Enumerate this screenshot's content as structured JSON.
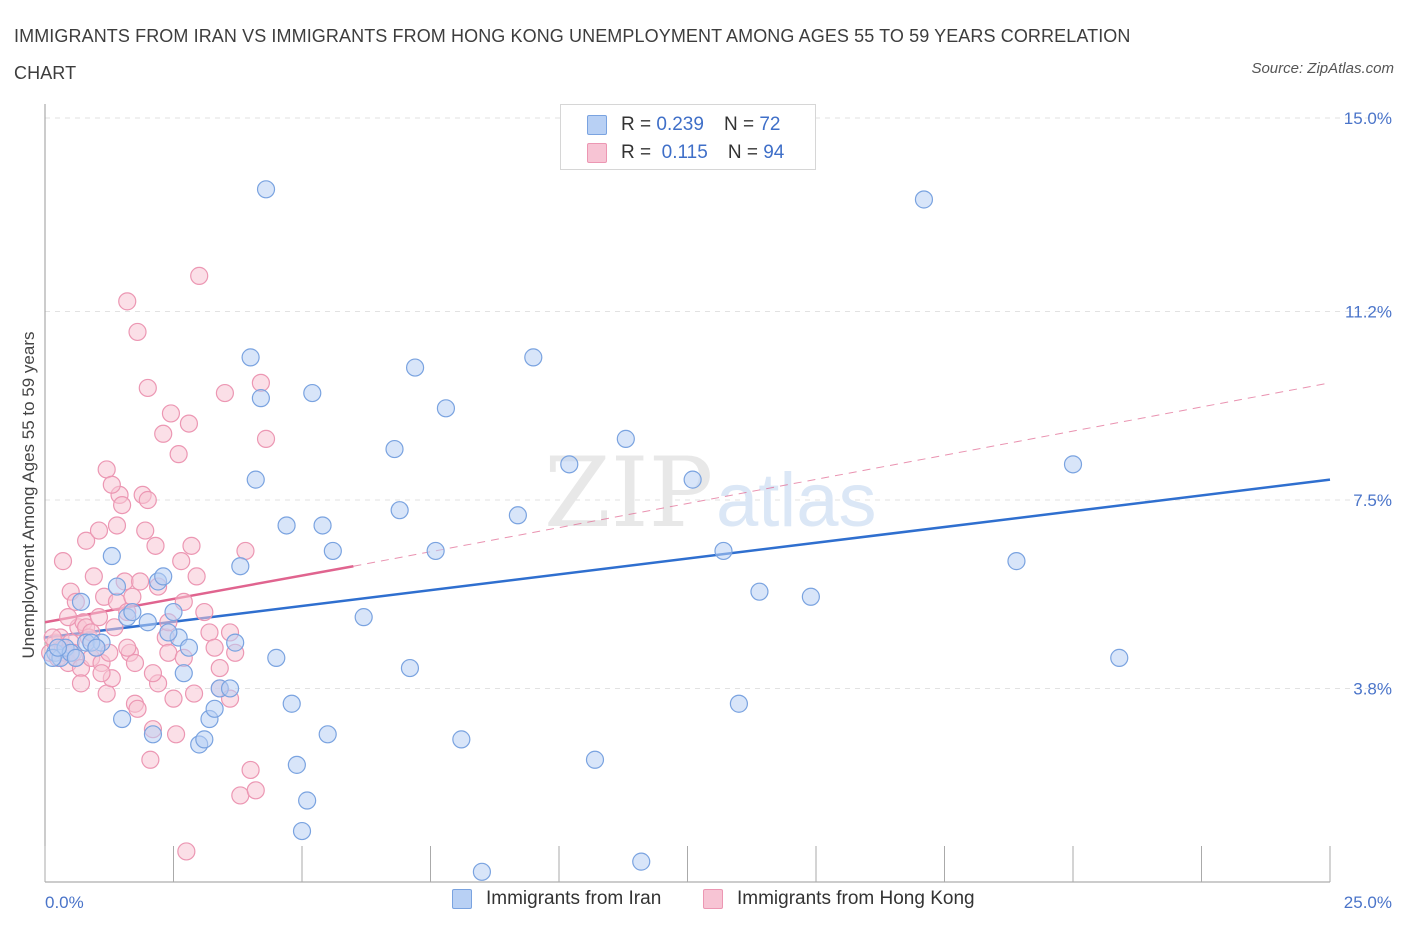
{
  "title": "IMMIGRANTS FROM IRAN VS IMMIGRANTS FROM HONG KONG UNEMPLOYMENT AMONG AGES 55 TO 59 YEARS CORRELATION CHART",
  "source": "Source: ZipAtlas.com",
  "watermark": {
    "zip": "ZIP",
    "atlas": "atlas"
  },
  "legend": {
    "iran": {
      "r_label": "R =",
      "r_value": "0.239",
      "n_label": "N =",
      "n_value": "72"
    },
    "hongkong": {
      "r_label": "R =",
      "r_value": "0.115",
      "n_label": "N =",
      "n_value": "94"
    }
  },
  "colors": {
    "iran_fill": "#b8d0f4",
    "iran_stroke": "#7aa3e0",
    "iran_line": "#2f6fcf",
    "hk_fill": "#f7c4d4",
    "hk_stroke": "#ec97b3",
    "hk_line": "#e0648f",
    "axis_tick": "#4a74c9",
    "grid": "#e2e2e2"
  },
  "chart_data": {
    "type": "scatter",
    "title": "IMMIGRANTS FROM IRAN VS IMMIGRANTS FROM HONG KONG UNEMPLOYMENT AMONG AGES 55 TO 59 YEARS CORRELATION CHART",
    "xlabel": "",
    "ylabel": "Unemployment Among Ages 55 to 59 years",
    "xlim": [
      0,
      25
    ],
    "ylim": [
      0,
      15
    ],
    "x_tick_labels": [
      "0.0%",
      "25.0%"
    ],
    "y_ticks": [
      3.8,
      7.5,
      11.2,
      15.0
    ],
    "y_tick_labels": [
      "3.8%",
      "7.5%",
      "11.2%",
      "15.0%"
    ],
    "grid": true,
    "legend_position": "top-center",
    "series": [
      {
        "name": "Immigrants from Iran",
        "trend": {
          "x0": 0,
          "y0": 4.8,
          "x1": 25,
          "y1": 7.9,
          "dashed_to": 25
        },
        "points": [
          [
            0.2,
            4.5
          ],
          [
            0.3,
            4.4
          ],
          [
            0.4,
            4.6
          ],
          [
            0.5,
            4.5
          ],
          [
            0.7,
            5.5
          ],
          [
            0.8,
            4.7
          ],
          [
            1.1,
            4.7
          ],
          [
            1.3,
            6.4
          ],
          [
            1.4,
            5.8
          ],
          [
            1.5,
            3.2
          ],
          [
            1.6,
            5.2
          ],
          [
            1.7,
            5.3
          ],
          [
            2.0,
            5.1
          ],
          [
            2.1,
            2.9
          ],
          [
            2.2,
            5.9
          ],
          [
            2.3,
            6.0
          ],
          [
            2.5,
            5.3
          ],
          [
            2.6,
            4.8
          ],
          [
            2.7,
            4.1
          ],
          [
            2.8,
            4.6
          ],
          [
            3.0,
            2.7
          ],
          [
            3.1,
            2.8
          ],
          [
            3.2,
            3.2
          ],
          [
            3.3,
            3.4
          ],
          [
            3.4,
            3.8
          ],
          [
            3.6,
            3.8
          ],
          [
            3.7,
            4.7
          ],
          [
            3.8,
            6.2
          ],
          [
            4.0,
            10.3
          ],
          [
            4.1,
            7.9
          ],
          [
            4.2,
            9.5
          ],
          [
            4.3,
            13.6
          ],
          [
            4.5,
            4.4
          ],
          [
            4.7,
            7.0
          ],
          [
            4.8,
            3.5
          ],
          [
            4.9,
            2.3
          ],
          [
            5.0,
            1.0
          ],
          [
            5.1,
            1.6
          ],
          [
            5.2,
            9.6
          ],
          [
            5.4,
            7.0
          ],
          [
            5.5,
            2.9
          ],
          [
            5.6,
            6.5
          ],
          [
            6.2,
            5.2
          ],
          [
            6.8,
            8.5
          ],
          [
            6.9,
            7.3
          ],
          [
            7.1,
            4.2
          ],
          [
            7.2,
            10.1
          ],
          [
            7.6,
            6.5
          ],
          [
            7.8,
            9.3
          ],
          [
            8.1,
            2.8
          ],
          [
            8.5,
            0.2
          ],
          [
            9.2,
            7.2
          ],
          [
            9.5,
            10.3
          ],
          [
            10.2,
            8.2
          ],
          [
            10.7,
            2.4
          ],
          [
            11.3,
            8.7
          ],
          [
            11.6,
            0.4
          ],
          [
            12.6,
            7.9
          ],
          [
            13.2,
            6.5
          ],
          [
            13.5,
            3.5
          ],
          [
            13.9,
            5.7
          ],
          [
            14.9,
            5.6
          ],
          [
            17.1,
            13.4
          ],
          [
            18.9,
            6.3
          ],
          [
            20.0,
            8.2
          ],
          [
            20.9,
            4.4
          ],
          [
            0.15,
            4.4
          ],
          [
            0.25,
            4.6
          ],
          [
            0.6,
            4.4
          ],
          [
            0.9,
            4.7
          ],
          [
            1.0,
            4.6
          ],
          [
            2.4,
            4.9
          ]
        ]
      },
      {
        "name": "Immigrants from Hong Kong",
        "trend": {
          "x0": 0,
          "y0": 5.1,
          "x1": 6,
          "y1": 6.2,
          "dashed_to": 25,
          "y_end": 9.8
        },
        "points": [
          [
            0.1,
            4.5
          ],
          [
            0.2,
            4.7
          ],
          [
            0.25,
            4.4
          ],
          [
            0.3,
            4.8
          ],
          [
            0.35,
            4.6
          ],
          [
            0.4,
            4.5
          ],
          [
            0.45,
            4.3
          ],
          [
            0.5,
            4.7
          ],
          [
            0.55,
            4.5
          ],
          [
            0.6,
            4.4
          ],
          [
            0.65,
            5.0
          ],
          [
            0.7,
            4.2
          ],
          [
            0.75,
            5.1
          ],
          [
            0.8,
            5.0
          ],
          [
            0.85,
            4.8
          ],
          [
            0.9,
            4.4
          ],
          [
            1.0,
            4.6
          ],
          [
            1.05,
            5.2
          ],
          [
            1.1,
            4.3
          ],
          [
            1.15,
            5.6
          ],
          [
            1.2,
            3.7
          ],
          [
            1.25,
            4.5
          ],
          [
            1.3,
            4.0
          ],
          [
            1.35,
            5.0
          ],
          [
            1.4,
            5.5
          ],
          [
            1.45,
            7.6
          ],
          [
            1.5,
            7.4
          ],
          [
            1.55,
            5.9
          ],
          [
            1.6,
            5.3
          ],
          [
            1.65,
            4.5
          ],
          [
            1.7,
            5.6
          ],
          [
            1.75,
            3.5
          ],
          [
            1.8,
            3.4
          ],
          [
            1.85,
            5.9
          ],
          [
            1.9,
            7.6
          ],
          [
            1.95,
            6.9
          ],
          [
            2.0,
            7.5
          ],
          [
            2.05,
            2.4
          ],
          [
            2.1,
            3.0
          ],
          [
            2.15,
            6.6
          ],
          [
            2.2,
            3.9
          ],
          [
            2.3,
            8.8
          ],
          [
            2.35,
            4.8
          ],
          [
            2.4,
            4.5
          ],
          [
            2.45,
            9.2
          ],
          [
            2.5,
            3.6
          ],
          [
            2.55,
            2.9
          ],
          [
            2.6,
            8.4
          ],
          [
            2.65,
            6.3
          ],
          [
            2.7,
            5.5
          ],
          [
            2.75,
            0.6
          ],
          [
            2.8,
            9.0
          ],
          [
            2.85,
            6.6
          ],
          [
            2.9,
            3.7
          ],
          [
            2.95,
            6.0
          ],
          [
            3.0,
            11.9
          ],
          [
            3.1,
            5.3
          ],
          [
            3.2,
            4.9
          ],
          [
            3.3,
            4.6
          ],
          [
            3.4,
            3.8
          ],
          [
            3.5,
            9.6
          ],
          [
            3.6,
            3.6
          ],
          [
            3.7,
            4.5
          ],
          [
            3.8,
            1.7
          ],
          [
            3.9,
            6.5
          ],
          [
            4.0,
            2.2
          ],
          [
            4.1,
            1.8
          ],
          [
            4.2,
            9.8
          ],
          [
            4.3,
            8.7
          ],
          [
            0.15,
            4.8
          ],
          [
            0.35,
            6.3
          ],
          [
            0.5,
            5.7
          ],
          [
            0.6,
            5.5
          ],
          [
            0.8,
            6.7
          ],
          [
            0.95,
            6.0
          ],
          [
            1.05,
            6.9
          ],
          [
            1.2,
            8.1
          ],
          [
            1.3,
            7.8
          ],
          [
            1.4,
            7.0
          ],
          [
            1.6,
            11.4
          ],
          [
            1.8,
            10.8
          ],
          [
            2.0,
            9.7
          ],
          [
            2.2,
            5.8
          ],
          [
            2.4,
            5.1
          ],
          [
            1.1,
            4.1
          ],
          [
            0.7,
            3.9
          ],
          [
            0.9,
            4.9
          ],
          [
            1.6,
            4.6
          ],
          [
            2.7,
            4.4
          ],
          [
            3.4,
            4.2
          ],
          [
            1.75,
            4.3
          ],
          [
            0.45,
            5.2
          ],
          [
            3.6,
            4.9
          ],
          [
            2.1,
            4.1
          ]
        ]
      }
    ],
    "bottom_legend": [
      "Immigrants from Iran",
      "Immigrants from Hong Kong"
    ]
  }
}
